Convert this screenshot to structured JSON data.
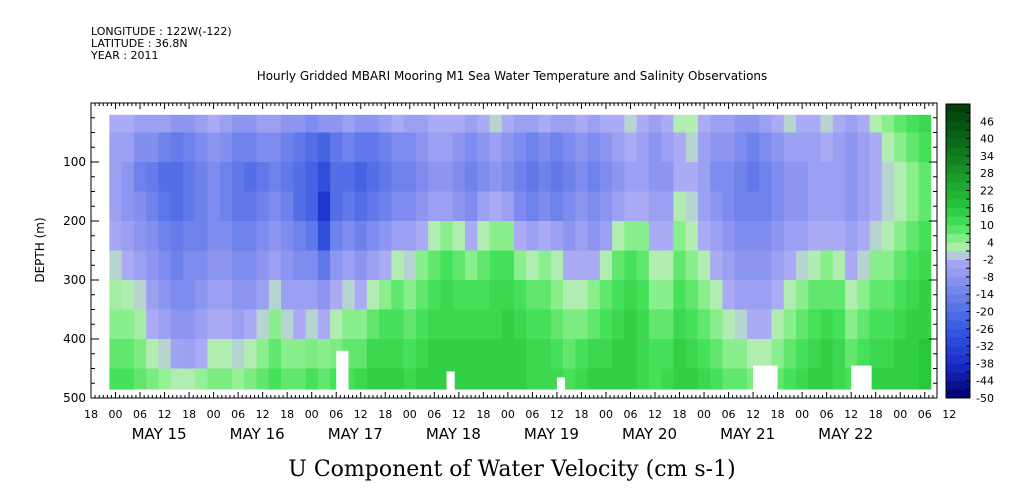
{
  "header": {
    "longitude": "LONGITUDE : 122W(-122)",
    "latitude": "LATITUDE : 36.8N",
    "year": "YEAR : 2011"
  },
  "chart_data": {
    "type": "heatmap",
    "title": "Hourly Gridded MBARI Mooring M1 Sea Water Temperature and Salinity Observations",
    "xlabel": "U Component of Water Velocity (cm s-1)",
    "ylabel": "DEPTH (m)",
    "ylim": [
      500,
      0
    ],
    "yticks": [
      100,
      200,
      300,
      400,
      500
    ],
    "xlim_hours_from_may15_00": [
      -18,
      189
    ],
    "hour_ticks": [
      "18",
      "00",
      "06",
      "12",
      "18",
      "00",
      "06",
      "12",
      "18",
      "00",
      "06",
      "12",
      "18",
      "00",
      "06",
      "12",
      "18",
      "00",
      "06",
      "12",
      "18",
      "00",
      "06",
      "12",
      "18",
      "00",
      "06",
      "12",
      "18",
      "00",
      "06",
      "12",
      "18",
      "00",
      "06",
      "12"
    ],
    "date_labels": [
      "MAY 15",
      "MAY 16",
      "MAY 17",
      "MAY 18",
      "MAY 19",
      "MAY 20",
      "MAY 21",
      "MAY 22"
    ],
    "colorbar_labels": [
      "46",
      "40",
      "34",
      "28",
      "22",
      "16",
      "10",
      "4",
      "-2",
      "-8",
      "-14",
      "-20",
      "-26",
      "-32",
      "-38",
      "-44",
      "-50"
    ],
    "colorbar_min": -50,
    "colorbar_max": 52,
    "colorbar_step": 3,
    "data_depth_range": [
      20,
      485
    ],
    "column_hours": [
      -12,
      -9,
      -6,
      -3,
      0,
      3,
      6,
      9,
      12,
      15,
      18,
      21,
      24,
      27,
      30,
      33,
      36,
      39,
      42,
      45,
      48,
      51,
      54,
      57,
      60,
      63,
      66,
      69,
      72,
      75,
      78,
      81,
      84,
      87,
      90,
      93,
      96,
      99,
      102,
      105,
      108,
      111,
      114,
      117,
      120,
      123,
      126,
      129,
      132,
      135,
      138,
      141,
      144,
      147,
      150,
      153,
      156,
      159,
      162,
      165,
      168,
      171,
      174,
      177,
      180,
      183,
      186
    ],
    "row_depths": [
      25,
      75,
      125,
      175,
      225,
      275,
      325,
      375,
      425,
      475
    ],
    "values": [
      [
        -2,
        -5,
        -5,
        -5,
        -3,
        0,
        3,
        5,
        8,
        10
      ],
      [
        -2,
        -5,
        -8,
        -8,
        -5,
        -2,
        2,
        5,
        8,
        10
      ],
      [
        -5,
        -10,
        -14,
        -10,
        -8,
        -5,
        0,
        3,
        6,
        8
      ],
      [
        -5,
        -10,
        -16,
        -14,
        -10,
        -8,
        -5,
        -2,
        2,
        6
      ],
      [
        -5,
        -14,
        -20,
        -18,
        -14,
        -11,
        -8,
        -5,
        0,
        4
      ],
      [
        -8,
        -16,
        -20,
        -20,
        -16,
        -14,
        -11,
        -8,
        -4,
        2
      ],
      [
        -8,
        -14,
        -17,
        -17,
        -14,
        -11,
        -11,
        -8,
        -5,
        2
      ],
      [
        -5,
        -11,
        -14,
        -14,
        -14,
        -11,
        -8,
        -5,
        -2,
        4
      ],
      [
        -2,
        -8,
        -11,
        -11,
        -11,
        -8,
        -5,
        -2,
        2,
        6
      ],
      [
        -5,
        -10,
        -14,
        -14,
        -11,
        -8,
        -5,
        -2,
        2,
        6
      ],
      [
        -8,
        -14,
        -17,
        -17,
        -14,
        -11,
        -8,
        -5,
        0,
        4
      ],
      [
        -8,
        -14,
        -20,
        -17,
        -14,
        -11,
        -8,
        -2,
        2,
        6
      ],
      [
        -5,
        -11,
        -17,
        -14,
        -11,
        -8,
        -5,
        0,
        5,
        8
      ],
      [
        -5,
        -11,
        -14,
        -11,
        -8,
        -5,
        0,
        5,
        8,
        10
      ],
      [
        -8,
        -14,
        -17,
        -14,
        -11,
        -8,
        -5,
        0,
        5,
        8
      ],
      [
        -8,
        -17,
        -20,
        -20,
        -14,
        -11,
        -5,
        -2,
        5,
        8
      ],
      [
        -11,
        -20,
        -23,
        -23,
        -17,
        -11,
        -5,
        0,
        6,
        10
      ],
      [
        -8,
        -23,
        -29,
        -35,
        -29,
        -17,
        -8,
        -2,
        5,
        8
      ],
      [
        -8,
        -17,
        -20,
        -20,
        -14,
        -8,
        -2,
        2,
        6,
        10
      ],
      [
        -5,
        -14,
        -20,
        -17,
        -11,
        -5,
        0,
        5,
        8,
        10
      ],
      [
        -8,
        -17,
        -23,
        -20,
        -14,
        -8,
        -2,
        5,
        8,
        12
      ],
      [
        -8,
        -17,
        -20,
        -17,
        -11,
        -5,
        2,
        8,
        12,
        14
      ],
      [
        -5,
        -14,
        -17,
        -14,
        -8,
        -2,
        5,
        10,
        12,
        14
      ],
      [
        -2,
        -11,
        -14,
        -11,
        -5,
        2,
        8,
        10,
        12,
        14
      ],
      [
        -5,
        -11,
        -14,
        -11,
        -5,
        0,
        5,
        8,
        10,
        12
      ],
      [
        -5,
        -8,
        -11,
        -8,
        -2,
        5,
        8,
        10,
        12,
        14
      ],
      [
        -2,
        -5,
        -8,
        -5,
        2,
        8,
        10,
        12,
        14,
        14
      ],
      [
        -2,
        -5,
        -8,
        -5,
        5,
        10,
        12,
        12,
        14,
        14
      ],
      [
        -2,
        -8,
        -11,
        -8,
        2,
        8,
        10,
        12,
        14,
        14
      ],
      [
        -5,
        -11,
        -14,
        -11,
        -2,
        5,
        10,
        12,
        14,
        14
      ],
      [
        -2,
        -8,
        -11,
        -5,
        2,
        8,
        10,
        12,
        14,
        14
      ],
      [
        0,
        -5,
        -8,
        -2,
        5,
        10,
        12,
        12,
        14,
        14
      ],
      [
        -2,
        -8,
        -11,
        -5,
        5,
        10,
        12,
        14,
        14,
        14
      ],
      [
        -5,
        -11,
        -14,
        -11,
        -2,
        5,
        10,
        12,
        14,
        14
      ],
      [
        -5,
        -14,
        -17,
        -14,
        -5,
        2,
        8,
        10,
        12,
        12
      ],
      [
        -2,
        -11,
        -14,
        -11,
        -2,
        5,
        8,
        10,
        12,
        12
      ],
      [
        -5,
        -14,
        -17,
        -14,
        -5,
        2,
        5,
        8,
        10,
        12
      ],
      [
        -5,
        -11,
        -14,
        -11,
        -8,
        -2,
        2,
        6,
        8,
        10
      ],
      [
        -2,
        -8,
        -11,
        -8,
        -5,
        -2,
        2,
        6,
        10,
        12
      ],
      [
        -5,
        -11,
        -14,
        -11,
        -8,
        -2,
        5,
        8,
        12,
        14
      ],
      [
        -2,
        -8,
        -11,
        -8,
        -5,
        2,
        8,
        10,
        12,
        14
      ],
      [
        -2,
        -5,
        -8,
        -5,
        2,
        8,
        10,
        12,
        14,
        14
      ],
      [
        0,
        -2,
        -5,
        -2,
        5,
        10,
        12,
        14,
        14,
        14
      ],
      [
        -2,
        -5,
        -5,
        -2,
        5,
        8,
        10,
        12,
        12,
        12
      ],
      [
        -5,
        -8,
        -8,
        -5,
        -2,
        2,
        5,
        8,
        10,
        10
      ],
      [
        -2,
        -5,
        -8,
        -5,
        -2,
        2,
        5,
        8,
        10,
        12
      ],
      [
        2,
        -2,
        -2,
        2,
        5,
        8,
        10,
        12,
        14,
        14
      ],
      [
        2,
        0,
        -2,
        0,
        2,
        5,
        8,
        10,
        12,
        14
      ],
      [
        -2,
        -5,
        -5,
        -5,
        -2,
        2,
        5,
        8,
        10,
        12
      ],
      [
        -5,
        -8,
        -11,
        -8,
        -5,
        -2,
        2,
        5,
        8,
        10
      ],
      [
        -5,
        -8,
        -11,
        -11,
        -8,
        -5,
        -2,
        2,
        5,
        8
      ],
      [
        -8,
        -11,
        -14,
        -14,
        -11,
        -8,
        -5,
        0,
        5,
        8
      ],
      [
        -8,
        -14,
        -17,
        -14,
        -11,
        -8,
        -5,
        -2,
        2,
        6
      ],
      [
        -5,
        -11,
        -14,
        -14,
        -11,
        -8,
        -5,
        -2,
        2,
        5
      ],
      [
        -2,
        -8,
        -11,
        -11,
        -8,
        -5,
        -2,
        2,
        5,
        8
      ],
      [
        0,
        -5,
        -8,
        -8,
        -5,
        -2,
        2,
        5,
        8,
        10
      ],
      [
        -2,
        -5,
        -8,
        -8,
        -5,
        0,
        5,
        8,
        10,
        12
      ],
      [
        -2,
        -5,
        -5,
        -5,
        -2,
        2,
        8,
        10,
        12,
        14
      ],
      [
        0,
        -2,
        -5,
        -5,
        -2,
        5,
        8,
        12,
        14,
        14
      ],
      [
        -2,
        -5,
        -5,
        -5,
        -2,
        2,
        8,
        10,
        12,
        12
      ],
      [
        -5,
        -8,
        -8,
        -8,
        -5,
        -2,
        2,
        5,
        8,
        10
      ],
      [
        -2,
        -5,
        -5,
        -5,
        -2,
        0,
        5,
        8,
        10,
        12
      ],
      [
        2,
        -2,
        -2,
        -2,
        0,
        5,
        8,
        10,
        12,
        14
      ],
      [
        5,
        2,
        0,
        0,
        2,
        5,
        8,
        10,
        12,
        14
      ],
      [
        8,
        5,
        2,
        2,
        5,
        8,
        10,
        12,
        14,
        14
      ],
      [
        10,
        8,
        5,
        5,
        8,
        10,
        12,
        14,
        14,
        14
      ],
      [
        12,
        10,
        8,
        8,
        10,
        12,
        14,
        14,
        16,
        16
      ]
    ],
    "masked_cells": [
      {
        "hour_from": 42,
        "hour_to": 45,
        "depth_from": 420,
        "depth_to": 485
      },
      {
        "hour_from": 69,
        "hour_to": 71,
        "depth_from": 455,
        "depth_to": 485
      },
      {
        "hour_from": 96,
        "hour_to": 98,
        "depth_from": 465,
        "depth_to": 485
      },
      {
        "hour_from": 144,
        "hour_to": 150,
        "depth_from": 445,
        "depth_to": 485
      },
      {
        "hour_from": 168,
        "hour_to": 173,
        "depth_from": 445,
        "depth_to": 485
      }
    ]
  }
}
